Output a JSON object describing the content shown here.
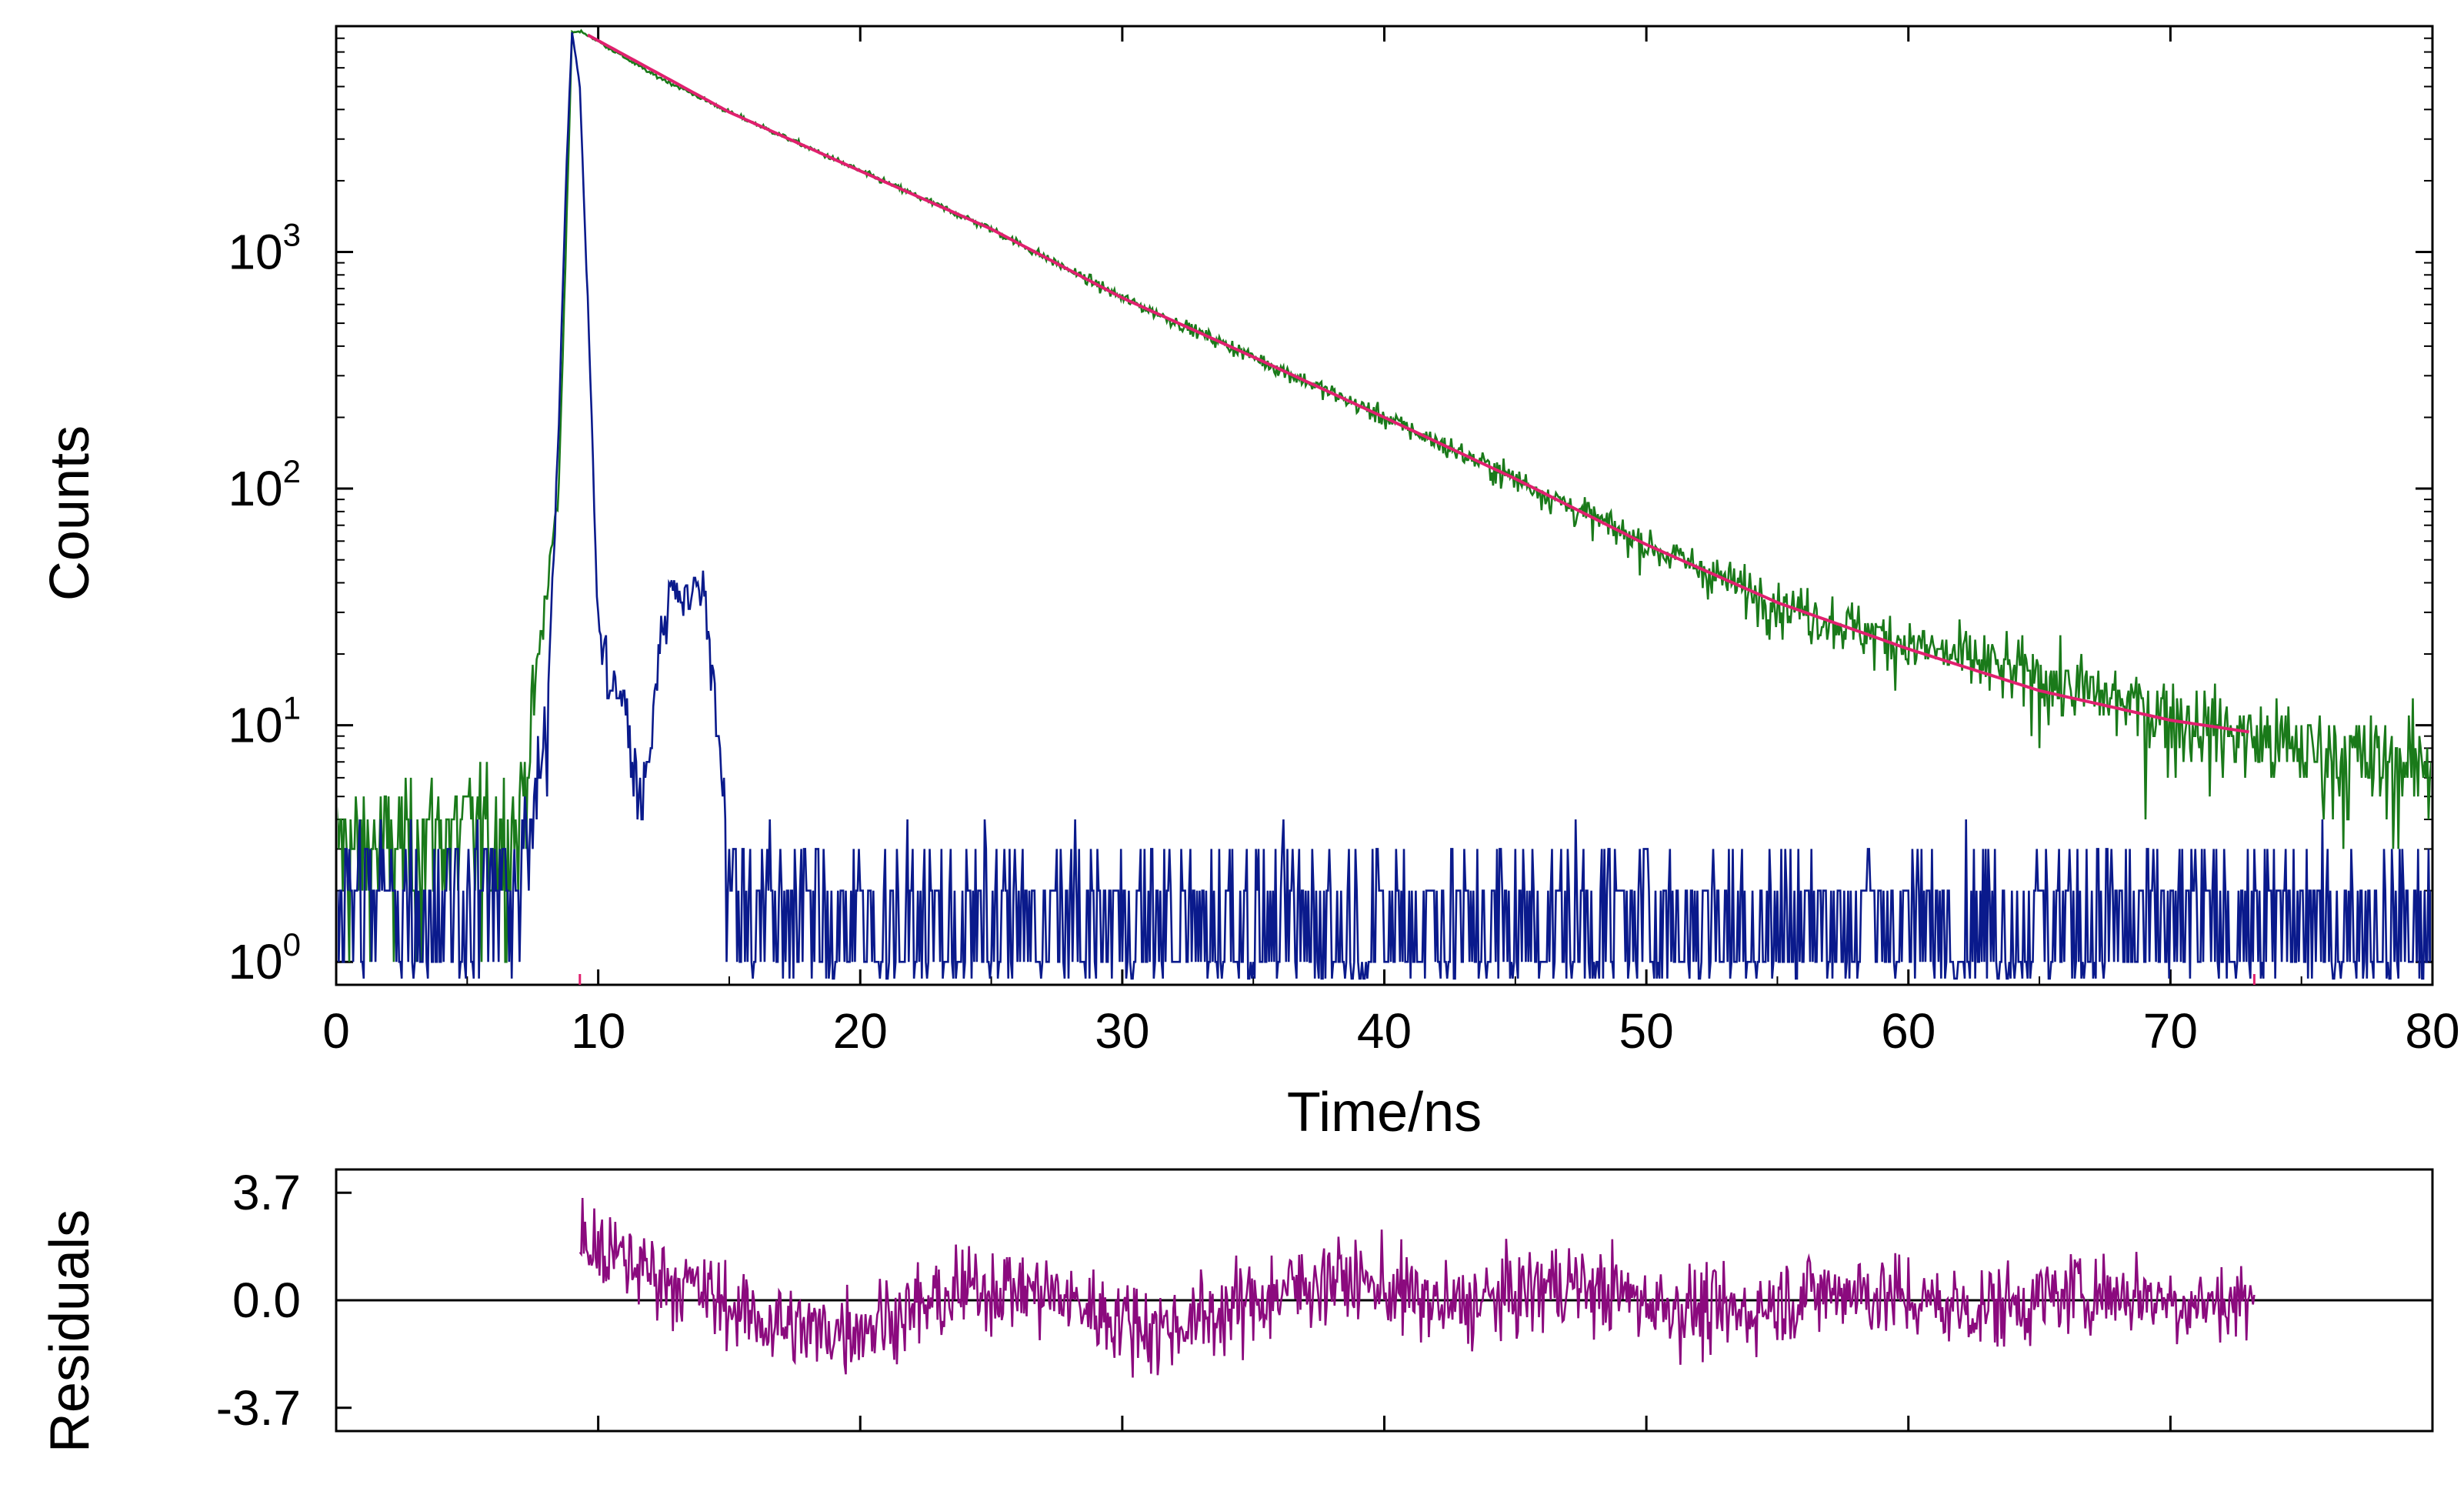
{
  "chart_data": [
    {
      "type": "line",
      "panel": "decay",
      "xlabel": "Time/ns",
      "ylabel": "Counts",
      "y_scale": "log",
      "xlim": [
        0,
        80
      ],
      "ylim": [
        0.8,
        9000
      ],
      "x_ticks": [
        0,
        10,
        20,
        30,
        40,
        50,
        60,
        70,
        80
      ],
      "y_ticks": [
        {
          "value": 1,
          "base": "10",
          "exp": "0"
        },
        {
          "value": 10,
          "base": "10",
          "exp": "1"
        },
        {
          "value": 100,
          "base": "10",
          "exp": "2"
        },
        {
          "value": 1000,
          "base": "10",
          "exp": "3"
        }
      ],
      "fit_range_markers": [
        9.3,
        73.2
      ],
      "series": [
        {
          "color": "#1a7a1a",
          "role": "decay",
          "x": [
            0,
            7,
            8.5,
            9.0,
            9.4,
            12,
            15,
            20,
            25,
            30,
            35,
            40,
            45,
            50,
            55,
            60,
            65,
            70,
            73,
            75,
            78,
            80
          ],
          "y": [
            3,
            4,
            100,
            8500,
            8500,
            5700,
            3900,
            2200,
            1250,
            640,
            360,
            200,
            110,
            58,
            33,
            22,
            16,
            11,
            9,
            8,
            7,
            7
          ]
        },
        {
          "color": "#0a1a8c",
          "role": "IRF",
          "x": [
            0,
            6.5,
            7.3,
            8.0,
            8.5,
            8.8,
            9.0,
            9.3,
            9.7,
            10.0,
            10.5,
            11.0,
            11.7,
            12.3,
            12.8,
            13.5,
            14.0,
            14.6,
            15.0,
            20,
            30,
            40,
            50,
            60,
            70,
            80
          ],
          "y": [
            2,
            2,
            3,
            8,
            200,
            2500,
            8500,
            5000,
            300,
            25,
            15,
            12,
            4,
            20,
            40,
            35,
            40,
            10,
            2,
            1.5,
            1.5,
            1.5,
            1.5,
            1.5,
            1.5,
            1.5
          ]
        },
        {
          "color": "#e0206e",
          "role": "fit",
          "x": [
            9.4,
            15,
            20,
            25,
            30,
            35,
            40,
            45,
            50,
            55,
            60,
            65,
            70,
            73.2
          ],
          "y": [
            8500,
            3900,
            2200,
            1250,
            640,
            360,
            200,
            110,
            58,
            33,
            21,
            14,
            10.5,
            9.3
          ]
        }
      ]
    },
    {
      "type": "line",
      "panel": "residuals",
      "ylabel": "Residuals",
      "xlim": [
        0,
        80
      ],
      "ylim": [
        -4.5,
        4.5
      ],
      "y_ticks": [
        3.7,
        0.0,
        -3.7
      ],
      "y_tick_labels": [
        "3.7",
        "0.0",
        "-3.7"
      ],
      "zero_line": true,
      "series": [
        {
          "color": "#8b0a7e",
          "role": "residuals",
          "x_range": [
            9.3,
            73.2
          ],
          "amplitude": 3.7,
          "y": [
            1.9,
            1.2,
            0.4,
            -0.6,
            -1.1,
            -0.8,
            -0.2,
            0.5,
            0.3,
            -0.4,
            -1.0,
            -0.5,
            0.2,
            0.8,
            0.4,
            -0.3,
            0.1,
            0.6,
            0.2,
            -0.2,
            -0.5,
            0.1,
            0.4,
            0.0,
            -0.3,
            -0.1,
            0.3,
            0.2,
            -0.1,
            0.0
          ]
        }
      ]
    }
  ]
}
